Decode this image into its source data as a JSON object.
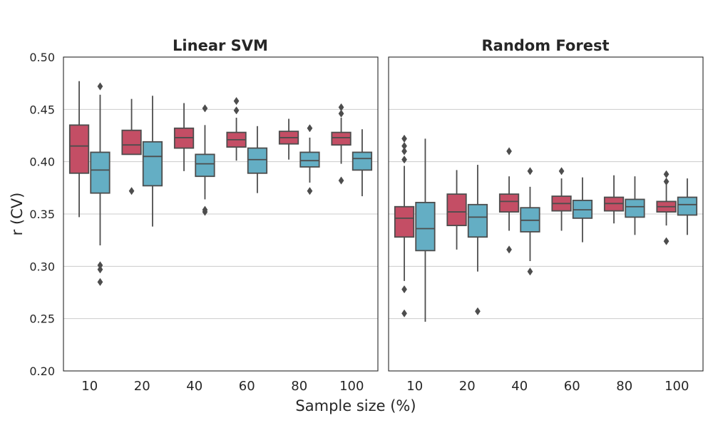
{
  "chart_data": [
    {
      "type": "box",
      "title": "Linear SVM",
      "xlabel": "Sample size (%)",
      "ylabel": "r (CV)",
      "ylim": [
        0.2,
        0.5
      ],
      "yticks": [
        "0.20",
        "0.25",
        "0.30",
        "0.35",
        "0.40",
        "0.45",
        "0.50"
      ],
      "categories": [
        "10",
        "20",
        "40",
        "60",
        "80",
        "100"
      ],
      "grid": "horizontal",
      "colors": [
        "#c44e65",
        "#64aec4"
      ],
      "series": [
        {
          "boxes": [
            {
              "whislo": 0.347,
              "q1": 0.389,
              "med": 0.415,
              "q3": 0.435,
              "whishi": 0.477,
              "fliers": []
            },
            {
              "whislo": 0.407,
              "q1": 0.407,
              "med": 0.416,
              "q3": 0.43,
              "whishi": 0.46,
              "fliers": [
                0.372
              ]
            },
            {
              "whislo": 0.391,
              "q1": 0.413,
              "med": 0.423,
              "q3": 0.432,
              "whishi": 0.456,
              "fliers": []
            },
            {
              "whislo": 0.401,
              "q1": 0.414,
              "med": 0.421,
              "q3": 0.428,
              "whishi": 0.442,
              "fliers": [
                0.449,
                0.458
              ]
            },
            {
              "whislo": 0.402,
              "q1": 0.417,
              "med": 0.423,
              "q3": 0.429,
              "whishi": 0.441,
              "fliers": []
            },
            {
              "whislo": 0.398,
              "q1": 0.416,
              "med": 0.423,
              "q3": 0.428,
              "whishi": 0.442,
              "fliers": [
                0.382,
                0.446,
                0.452
              ]
            }
          ]
        },
        {
          "boxes": [
            {
              "whislo": 0.32,
              "q1": 0.37,
              "med": 0.392,
              "q3": 0.409,
              "whishi": 0.464,
              "fliers": [
                0.285,
                0.297,
                0.301,
                0.472
              ]
            },
            {
              "whislo": 0.338,
              "q1": 0.377,
              "med": 0.405,
              "q3": 0.419,
              "whishi": 0.463,
              "fliers": []
            },
            {
              "whislo": 0.364,
              "q1": 0.386,
              "med": 0.398,
              "q3": 0.407,
              "whishi": 0.435,
              "fliers": [
                0.352,
                0.354,
                0.451
              ]
            },
            {
              "whislo": 0.37,
              "q1": 0.389,
              "med": 0.402,
              "q3": 0.413,
              "whishi": 0.434,
              "fliers": []
            },
            {
              "whislo": 0.38,
              "q1": 0.395,
              "med": 0.401,
              "q3": 0.409,
              "whishi": 0.423,
              "fliers": [
                0.372,
                0.432
              ]
            },
            {
              "whislo": 0.367,
              "q1": 0.392,
              "med": 0.403,
              "q3": 0.409,
              "whishi": 0.431,
              "fliers": []
            }
          ]
        }
      ]
    },
    {
      "type": "box",
      "title": "Random Forest",
      "xlabel": "Sample size (%)",
      "ylabel": "r (CV)",
      "ylim": [
        0.2,
        0.5
      ],
      "categories": [
        "10",
        "20",
        "40",
        "60",
        "80",
        "100"
      ],
      "grid": "horizontal",
      "shared_y": true,
      "colors": [
        "#c44e65",
        "#64aec4"
      ],
      "series": [
        {
          "boxes": [
            {
              "whislo": 0.286,
              "q1": 0.328,
              "med": 0.346,
              "q3": 0.357,
              "whishi": 0.396,
              "fliers": [
                0.255,
                0.278,
                0.402,
                0.41,
                0.415,
                0.422
              ]
            },
            {
              "whislo": 0.316,
              "q1": 0.339,
              "med": 0.352,
              "q3": 0.369,
              "whishi": 0.392,
              "fliers": []
            },
            {
              "whislo": 0.334,
              "q1": 0.352,
              "med": 0.362,
              "q3": 0.369,
              "whishi": 0.386,
              "fliers": [
                0.316,
                0.41
              ]
            },
            {
              "whislo": 0.334,
              "q1": 0.353,
              "med": 0.36,
              "q3": 0.367,
              "whishi": 0.384,
              "fliers": [
                0.391
              ]
            },
            {
              "whislo": 0.341,
              "q1": 0.353,
              "med": 0.36,
              "q3": 0.366,
              "whishi": 0.387,
              "fliers": []
            },
            {
              "whislo": 0.339,
              "q1": 0.352,
              "med": 0.357,
              "q3": 0.362,
              "whishi": 0.378,
              "fliers": [
                0.324,
                0.381,
                0.388
              ]
            }
          ]
        },
        {
          "boxes": [
            {
              "whislo": 0.247,
              "q1": 0.315,
              "med": 0.336,
              "q3": 0.361,
              "whishi": 0.422,
              "fliers": []
            },
            {
              "whislo": 0.295,
              "q1": 0.328,
              "med": 0.347,
              "q3": 0.359,
              "whishi": 0.397,
              "fliers": [
                0.257
              ]
            },
            {
              "whislo": 0.305,
              "q1": 0.333,
              "med": 0.344,
              "q3": 0.356,
              "whishi": 0.376,
              "fliers": [
                0.295,
                0.391
              ]
            },
            {
              "whislo": 0.323,
              "q1": 0.346,
              "med": 0.354,
              "q3": 0.363,
              "whishi": 0.385,
              "fliers": []
            },
            {
              "whislo": 0.33,
              "q1": 0.347,
              "med": 0.357,
              "q3": 0.364,
              "whishi": 0.386,
              "fliers": []
            },
            {
              "whislo": 0.33,
              "q1": 0.349,
              "med": 0.359,
              "q3": 0.366,
              "whishi": 0.384,
              "fliers": []
            }
          ]
        }
      ]
    }
  ]
}
